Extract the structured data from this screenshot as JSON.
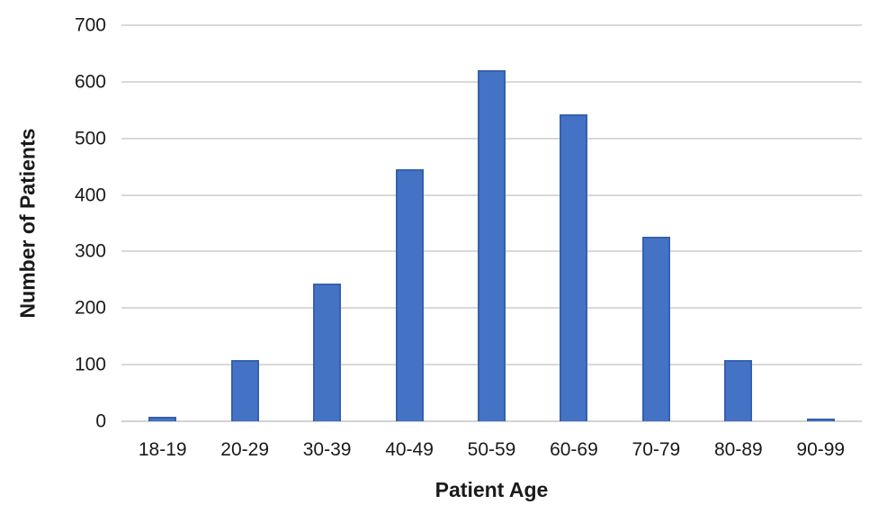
{
  "chart_data": {
    "type": "bar",
    "title": "",
    "categories": [
      "18-19",
      "20-29",
      "30-39",
      "40-49",
      "50-59",
      "60-69",
      "70-79",
      "80-89",
      "90-99"
    ],
    "values": [
      8,
      108,
      244,
      445,
      620,
      543,
      326,
      108,
      5
    ],
    "xlabel": "Patient Age",
    "ylabel": "Number of Patients",
    "ylim": [
      0,
      700
    ],
    "yticks": [
      0,
      100,
      200,
      300,
      400,
      500,
      600,
      700
    ],
    "grid": true,
    "legend": false,
    "colors": {
      "bar_fill": "#4472c4",
      "bar_border": "#3561ae",
      "gridline": "#d9d9d9",
      "axis_line": "#d2d2d2",
      "text": "#1a1a1a",
      "background": "#ffffff"
    }
  }
}
